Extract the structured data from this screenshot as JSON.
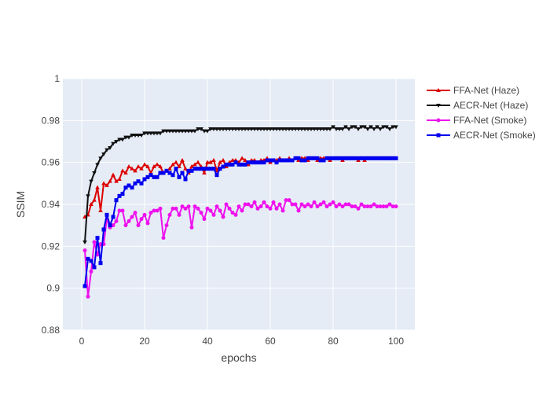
{
  "chart_data": {
    "type": "line",
    "xlabel": "epochs",
    "ylabel": "SSIM",
    "xlim": [
      -6,
      106
    ],
    "ylim": [
      0.88,
      1.0
    ],
    "x_ticks": [
      0,
      20,
      40,
      60,
      80,
      100
    ],
    "y_ticks": [
      0.88,
      0.9,
      0.92,
      0.94,
      0.96,
      0.98,
      1.0
    ],
    "x_tick_labels": [
      "0",
      "20",
      "40",
      "60",
      "80",
      "100"
    ],
    "y_tick_labels": [
      "0.88",
      "0.9",
      "0.92",
      "0.94",
      "0.96",
      "0.98",
      "1"
    ],
    "grid": true,
    "legend_position": "top-right outside",
    "x": [
      1,
      2,
      3,
      4,
      5,
      6,
      7,
      8,
      9,
      10,
      11,
      12,
      13,
      14,
      15,
      16,
      17,
      18,
      19,
      20,
      21,
      22,
      23,
      24,
      25,
      26,
      27,
      28,
      29,
      30,
      31,
      32,
      33,
      34,
      35,
      36,
      37,
      38,
      39,
      40,
      41,
      42,
      43,
      44,
      45,
      46,
      47,
      48,
      49,
      50,
      51,
      52,
      53,
      54,
      55,
      56,
      57,
      58,
      59,
      60,
      61,
      62,
      63,
      64,
      65,
      66,
      67,
      68,
      69,
      70,
      71,
      72,
      73,
      74,
      75,
      76,
      77,
      78,
      79,
      80,
      81,
      82,
      83,
      84,
      85,
      86,
      87,
      88,
      89,
      90,
      91,
      92,
      93,
      94,
      95,
      96,
      97,
      98,
      99,
      100
    ],
    "series": [
      {
        "name": "FFA-Net (Haze)",
        "color": "#dd0000",
        "marker": "triangle-up",
        "values": [
          0.934,
          0.935,
          0.94,
          0.942,
          0.948,
          0.937,
          0.95,
          0.949,
          0.951,
          0.954,
          0.951,
          0.952,
          0.956,
          0.955,
          0.958,
          0.957,
          0.956,
          0.958,
          0.957,
          0.959,
          0.958,
          0.955,
          0.958,
          0.959,
          0.958,
          0.955,
          0.956,
          0.957,
          0.959,
          0.96,
          0.958,
          0.961,
          0.957,
          0.955,
          0.958,
          0.959,
          0.96,
          0.958,
          0.955,
          0.96,
          0.96,
          0.961,
          0.956,
          0.96,
          0.961,
          0.958,
          0.96,
          0.961,
          0.961,
          0.96,
          0.962,
          0.961,
          0.959,
          0.961,
          0.961,
          0.96,
          0.961,
          0.961,
          0.962,
          0.96,
          0.961,
          0.961,
          0.962,
          0.961,
          0.961,
          0.962,
          0.961,
          0.962,
          0.961,
          0.962,
          0.962,
          0.961,
          0.962,
          0.962,
          0.961,
          0.962,
          0.962,
          0.962,
          0.961,
          0.962,
          0.962,
          0.962,
          0.961,
          0.962,
          0.962,
          0.962,
          0.962,
          0.961,
          0.962,
          0.961,
          0.962,
          0.962,
          0.962,
          0.962,
          0.962,
          0.962,
          0.962,
          0.962,
          0.962,
          0.962
        ]
      },
      {
        "name": "AECR-Net (Haze)",
        "color": "#111111",
        "marker": "triangle-down",
        "values": [
          0.922,
          0.944,
          0.951,
          0.955,
          0.959,
          0.962,
          0.964,
          0.966,
          0.967,
          0.969,
          0.97,
          0.971,
          0.971,
          0.972,
          0.972,
          0.973,
          0.973,
          0.973,
          0.973,
          0.974,
          0.974,
          0.974,
          0.974,
          0.974,
          0.974,
          0.975,
          0.975,
          0.975,
          0.975,
          0.975,
          0.975,
          0.975,
          0.975,
          0.975,
          0.975,
          0.975,
          0.976,
          0.976,
          0.975,
          0.975,
          0.976,
          0.976,
          0.976,
          0.976,
          0.976,
          0.976,
          0.976,
          0.976,
          0.976,
          0.976,
          0.976,
          0.976,
          0.976,
          0.976,
          0.976,
          0.976,
          0.976,
          0.976,
          0.976,
          0.976,
          0.976,
          0.976,
          0.976,
          0.976,
          0.976,
          0.976,
          0.976,
          0.976,
          0.976,
          0.976,
          0.976,
          0.976,
          0.976,
          0.976,
          0.976,
          0.976,
          0.976,
          0.976,
          0.976,
          0.977,
          0.976,
          0.976,
          0.976,
          0.977,
          0.976,
          0.977,
          0.977,
          0.976,
          0.977,
          0.977,
          0.976,
          0.977,
          0.976,
          0.977,
          0.976,
          0.977,
          0.977,
          0.976,
          0.977,
          0.977
        ]
      },
      {
        "name": "FFA-Net (Smoke)",
        "color": "#ee11ee",
        "marker": "circle",
        "values": [
          0.918,
          0.896,
          0.908,
          0.922,
          0.916,
          0.921,
          0.921,
          0.933,
          0.929,
          0.93,
          0.932,
          0.937,
          0.937,
          0.93,
          0.932,
          0.934,
          0.936,
          0.93,
          0.933,
          0.935,
          0.931,
          0.936,
          0.937,
          0.937,
          0.938,
          0.924,
          0.93,
          0.935,
          0.938,
          0.938,
          0.935,
          0.939,
          0.938,
          0.939,
          0.929,
          0.939,
          0.938,
          0.936,
          0.933,
          0.938,
          0.937,
          0.935,
          0.939,
          0.937,
          0.934,
          0.94,
          0.938,
          0.936,
          0.935,
          0.939,
          0.937,
          0.94,
          0.94,
          0.939,
          0.941,
          0.938,
          0.939,
          0.941,
          0.939,
          0.938,
          0.941,
          0.938,
          0.94,
          0.937,
          0.942,
          0.942,
          0.94,
          0.94,
          0.937,
          0.94,
          0.939,
          0.94,
          0.939,
          0.941,
          0.939,
          0.94,
          0.941,
          0.939,
          0.94,
          0.941,
          0.939,
          0.94,
          0.939,
          0.94,
          0.94,
          0.939,
          0.939,
          0.938,
          0.94,
          0.939,
          0.939,
          0.939,
          0.94,
          0.939,
          0.939,
          0.939,
          0.939,
          0.94,
          0.939,
          0.939
        ]
      },
      {
        "name": "AECR-Net (Smoke)",
        "color": "#0000ee",
        "marker": "square",
        "values": [
          0.901,
          0.914,
          0.913,
          0.91,
          0.924,
          0.912,
          0.928,
          0.935,
          0.93,
          0.934,
          0.942,
          0.944,
          0.945,
          0.948,
          0.949,
          0.948,
          0.95,
          0.951,
          0.95,
          0.952,
          0.953,
          0.954,
          0.953,
          0.953,
          0.955,
          0.955,
          0.956,
          0.955,
          0.954,
          0.957,
          0.953,
          0.955,
          0.952,
          0.956,
          0.956,
          0.957,
          0.957,
          0.957,
          0.957,
          0.957,
          0.957,
          0.957,
          0.954,
          0.957,
          0.958,
          0.959,
          0.959,
          0.959,
          0.96,
          0.959,
          0.959,
          0.959,
          0.96,
          0.96,
          0.96,
          0.96,
          0.96,
          0.96,
          0.961,
          0.961,
          0.961,
          0.96,
          0.961,
          0.961,
          0.961,
          0.961,
          0.961,
          0.962,
          0.962,
          0.961,
          0.961,
          0.962,
          0.962,
          0.962,
          0.962,
          0.961,
          0.961,
          0.962,
          0.962,
          0.962,
          0.962,
          0.962,
          0.962,
          0.962,
          0.962,
          0.962,
          0.962,
          0.962,
          0.962,
          0.962,
          0.962,
          0.962,
          0.962,
          0.962,
          0.962,
          0.962,
          0.962,
          0.962,
          0.962,
          0.962
        ]
      }
    ]
  }
}
